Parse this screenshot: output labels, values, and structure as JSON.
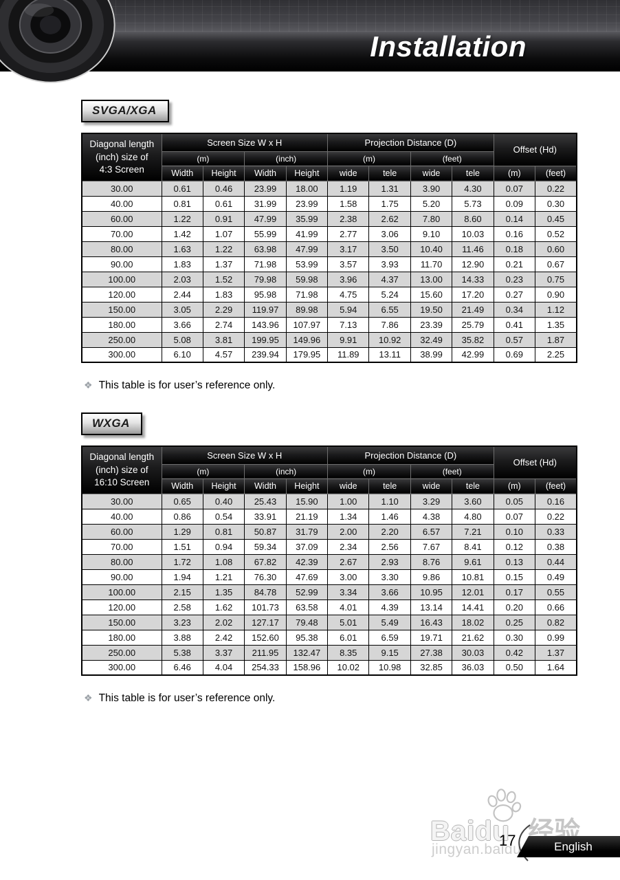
{
  "page": {
    "header_title": "Installation",
    "footer": {
      "page_number": "17",
      "language_label": "English"
    },
    "watermark": {
      "brand": "Baidu",
      "brand_cn": "经验",
      "url": "jingyan.baidu.com"
    },
    "colors": {
      "banner_bg": "#000000",
      "table_header_bg": "#000000",
      "row_alt": "#d6d6d6",
      "label_border": "#000000"
    }
  },
  "sections": [
    {
      "label": "SVGA/XGA",
      "note_bullet": "❖",
      "note": "This table is for user’s reference only.",
      "table": {
        "corner_lines": [
          "Diagonal length",
          "(inch) size of",
          "4:3 Screen"
        ],
        "groups": [
          "Screen Size W x H",
          "Projection Distance (D)",
          "Offset (Hd)"
        ],
        "units": [
          "(m)",
          "(inch)",
          "(m)",
          "(feet)"
        ],
        "columns": [
          "Width",
          "Height",
          "Width",
          "Height",
          "wide",
          "tele",
          "wide",
          "tele",
          "(m)",
          "(feet)"
        ],
        "rows": [
          [
            "30.00",
            "0.61",
            "0.46",
            "23.99",
            "18.00",
            "1.19",
            "1.31",
            "3.90",
            "4.30",
            "0.07",
            "0.22"
          ],
          [
            "40.00",
            "0.81",
            "0.61",
            "31.99",
            "23.99",
            "1.58",
            "1.75",
            "5.20",
            "5.73",
            "0.09",
            "0.30"
          ],
          [
            "60.00",
            "1.22",
            "0.91",
            "47.99",
            "35.99",
            "2.38",
            "2.62",
            "7.80",
            "8.60",
            "0.14",
            "0.45"
          ],
          [
            "70.00",
            "1.42",
            "1.07",
            "55.99",
            "41.99",
            "2.77",
            "3.06",
            "9.10",
            "10.03",
            "0.16",
            "0.52"
          ],
          [
            "80.00",
            "1.63",
            "1.22",
            "63.98",
            "47.99",
            "3.17",
            "3.50",
            "10.40",
            "11.46",
            "0.18",
            "0.60"
          ],
          [
            "90.00",
            "1.83",
            "1.37",
            "71.98",
            "53.99",
            "3.57",
            "3.93",
            "11.70",
            "12.90",
            "0.21",
            "0.67"
          ],
          [
            "100.00",
            "2.03",
            "1.52",
            "79.98",
            "59.98",
            "3.96",
            "4.37",
            "13.00",
            "14.33",
            "0.23",
            "0.75"
          ],
          [
            "120.00",
            "2.44",
            "1.83",
            "95.98",
            "71.98",
            "4.75",
            "5.24",
            "15.60",
            "17.20",
            "0.27",
            "0.90"
          ],
          [
            "150.00",
            "3.05",
            "2.29",
            "119.97",
            "89.98",
            "5.94",
            "6.55",
            "19.50",
            "21.49",
            "0.34",
            "1.12"
          ],
          [
            "180.00",
            "3.66",
            "2.74",
            "143.96",
            "107.97",
            "7.13",
            "7.86",
            "23.39",
            "25.79",
            "0.41",
            "1.35"
          ],
          [
            "250.00",
            "5.08",
            "3.81",
            "199.95",
            "149.96",
            "9.91",
            "10.92",
            "32.49",
            "35.82",
            "0.57",
            "1.87"
          ],
          [
            "300.00",
            "6.10",
            "4.57",
            "239.94",
            "179.95",
            "11.89",
            "13.11",
            "38.99",
            "42.99",
            "0.69",
            "2.25"
          ]
        ]
      }
    },
    {
      "label": "WXGA",
      "note_bullet": "❖",
      "note": "This table is for user’s reference only.",
      "table": {
        "corner_lines": [
          "Diagonal length",
          "(inch) size of",
          "16:10 Screen"
        ],
        "groups": [
          "Screen Size W x H",
          "Projection Distance (D)",
          "Offset (Hd)"
        ],
        "units": [
          "(m)",
          "(inch)",
          "(m)",
          "(feet)"
        ],
        "columns": [
          "Width",
          "Height",
          "Width",
          "Height",
          "wide",
          "tele",
          "wide",
          "tele",
          "(m)",
          "(feet)"
        ],
        "rows": [
          [
            "30.00",
            "0.65",
            "0.40",
            "25.43",
            "15.90",
            "1.00",
            "1.10",
            "3.29",
            "3.60",
            "0.05",
            "0.16"
          ],
          [
            "40.00",
            "0.86",
            "0.54",
            "33.91",
            "21.19",
            "1.34",
            "1.46",
            "4.38",
            "4.80",
            "0.07",
            "0.22"
          ],
          [
            "60.00",
            "1.29",
            "0.81",
            "50.87",
            "31.79",
            "2.00",
            "2.20",
            "6.57",
            "7.21",
            "0.10",
            "0.33"
          ],
          [
            "70.00",
            "1.51",
            "0.94",
            "59.34",
            "37.09",
            "2.34",
            "2.56",
            "7.67",
            "8.41",
            "0.12",
            "0.38"
          ],
          [
            "80.00",
            "1.72",
            "1.08",
            "67.82",
            "42.39",
            "2.67",
            "2.93",
            "8.76",
            "9.61",
            "0.13",
            "0.44"
          ],
          [
            "90.00",
            "1.94",
            "1.21",
            "76.30",
            "47.69",
            "3.00",
            "3.30",
            "9.86",
            "10.81",
            "0.15",
            "0.49"
          ],
          [
            "100.00",
            "2.15",
            "1.35",
            "84.78",
            "52.99",
            "3.34",
            "3.66",
            "10.95",
            "12.01",
            "0.17",
            "0.55"
          ],
          [
            "120.00",
            "2.58",
            "1.62",
            "101.73",
            "63.58",
            "4.01",
            "4.39",
            "13.14",
            "14.41",
            "0.20",
            "0.66"
          ],
          [
            "150.00",
            "3.23",
            "2.02",
            "127.17",
            "79.48",
            "5.01",
            "5.49",
            "16.43",
            "18.02",
            "0.25",
            "0.82"
          ],
          [
            "180.00",
            "3.88",
            "2.42",
            "152.60",
            "95.38",
            "6.01",
            "6.59",
            "19.71",
            "21.62",
            "0.30",
            "0.99"
          ],
          [
            "250.00",
            "5.38",
            "3.37",
            "211.95",
            "132.47",
            "8.35",
            "9.15",
            "27.38",
            "30.03",
            "0.42",
            "1.37"
          ],
          [
            "300.00",
            "6.46",
            "4.04",
            "254.33",
            "158.96",
            "10.02",
            "10.98",
            "32.85",
            "36.03",
            "0.50",
            "1.64"
          ]
        ]
      }
    }
  ]
}
